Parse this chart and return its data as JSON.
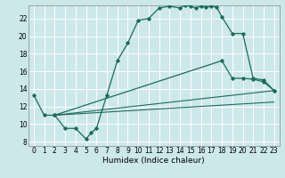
{
  "xlabel": "Humidex (Indice chaleur)",
  "bg_color": "#cce8eb",
  "line_color": "#1a6b5a",
  "grid_color": "#ffffff",
  "xlim": [
    -0.5,
    23.5
  ],
  "ylim": [
    7.5,
    23.5
  ],
  "yticks": [
    8,
    10,
    12,
    14,
    16,
    18,
    20,
    22
  ],
  "xticks": [
    0,
    1,
    2,
    3,
    4,
    5,
    6,
    7,
    8,
    9,
    10,
    11,
    12,
    13,
    14,
    15,
    16,
    17,
    18,
    19,
    20,
    21,
    22,
    23
  ],
  "curve1_x": [
    0,
    1,
    2,
    3,
    4,
    5,
    5.5,
    6,
    7,
    8,
    9,
    10,
    11,
    12,
    13,
    14,
    14.5,
    15,
    15.5,
    16,
    16.5,
    17,
    17.5,
    18,
    19,
    20,
    21,
    22,
    23
  ],
  "curve1_y": [
    13.3,
    11.0,
    11.0,
    9.5,
    9.5,
    8.3,
    9.0,
    9.5,
    13.3,
    17.2,
    19.2,
    21.8,
    22.0,
    23.2,
    23.4,
    23.2,
    23.5,
    23.4,
    23.2,
    23.4,
    23.3,
    23.4,
    23.3,
    22.2,
    20.3,
    20.3,
    15.2,
    15.0,
    13.8
  ],
  "line1_x": [
    2,
    23
  ],
  "line1_y": [
    11.0,
    13.8
  ],
  "line2_x": [
    2,
    23
  ],
  "line2_y": [
    11.0,
    12.5
  ],
  "curve2_x": [
    2,
    18,
    19,
    20,
    21,
    22,
    23
  ],
  "curve2_y": [
    11.0,
    17.2,
    15.2,
    15.2,
    15.1,
    14.8,
    13.8
  ],
  "tick_fontsize": 5.5,
  "xlabel_fontsize": 6.5
}
